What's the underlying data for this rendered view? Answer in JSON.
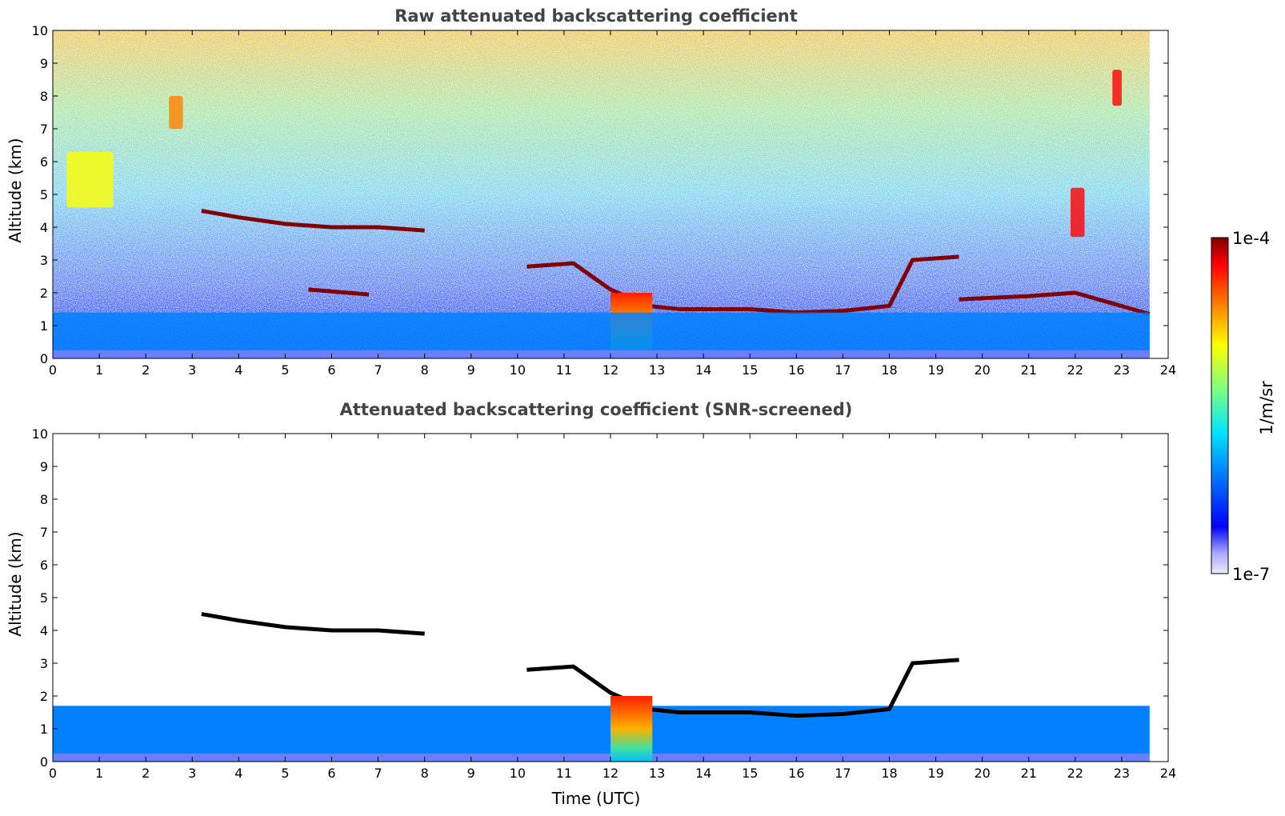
{
  "chart_data": [
    {
      "type": "heatmap",
      "title": "Raw attenuated backscattering coefficient",
      "xlabel": "",
      "ylabel": "Altitude (km)",
      "xlim": [
        0,
        24
      ],
      "ylim": [
        0,
        10
      ],
      "x_ticks": [
        "0",
        "1",
        "2",
        "3",
        "4",
        "5",
        "6",
        "7",
        "8",
        "9",
        "10",
        "11",
        "12",
        "13",
        "14",
        "15",
        "16",
        "17",
        "18",
        "19",
        "20",
        "21",
        "22",
        "23",
        "24"
      ],
      "y_ticks": [
        "0",
        "1",
        "2",
        "3",
        "4",
        "5",
        "6",
        "7",
        "8",
        "9",
        "10"
      ],
      "data_end_time": 23.6,
      "features": [
        {
          "kind": "cloud_layer",
          "points": [
            [
              3.2,
              4.5
            ],
            [
              4.0,
              4.3
            ],
            [
              5.0,
              4.1
            ],
            [
              6.0,
              4.0
            ],
            [
              7.0,
              4.0
            ],
            [
              8.0,
              3.9
            ]
          ],
          "level": "1e-4"
        },
        {
          "kind": "cloud_layer",
          "points": [
            [
              5.5,
              2.1
            ],
            [
              6.8,
              1.95
            ]
          ],
          "level": "1e-4"
        },
        {
          "kind": "cloud_layer",
          "points": [
            [
              10.2,
              2.8
            ],
            [
              11.2,
              2.9
            ],
            [
              12.0,
              2.1
            ],
            [
              12.8,
              1.6
            ],
            [
              13.5,
              1.5
            ],
            [
              15.0,
              1.5
            ],
            [
              16.0,
              1.4
            ],
            [
              17.0,
              1.45
            ],
            [
              18.0,
              1.6
            ],
            [
              18.5,
              3.0
            ],
            [
              19.5,
              3.1
            ]
          ],
          "level": "1e-4"
        },
        {
          "kind": "cloud_layer",
          "points": [
            [
              19.5,
              1.8
            ],
            [
              21.0,
              1.9
            ],
            [
              22.0,
              2.0
            ],
            [
              23.6,
              1.35
            ]
          ],
          "level": "1e-4"
        },
        {
          "kind": "precipitation_shaft",
          "x_range": [
            12.0,
            12.9
          ],
          "top": 2.0,
          "level": "1e-4"
        },
        {
          "kind": "cirrus",
          "x_range": [
            0.3,
            1.3
          ],
          "y_range": [
            4.6,
            6.3
          ],
          "level": "1e-5"
        },
        {
          "kind": "cirrus",
          "x_range": [
            2.5,
            2.8
          ],
          "y_range": [
            7.0,
            8.0
          ],
          "level": "3e-5"
        },
        {
          "kind": "cirrus",
          "x_range": [
            21.9,
            22.2
          ],
          "y_range": [
            3.7,
            5.2
          ],
          "level": "5e-5"
        },
        {
          "kind": "cirrus",
          "x_range": [
            22.8,
            23.0
          ],
          "y_range": [
            7.7,
            8.8
          ],
          "level": "5e-5"
        },
        {
          "kind": "boundary_layer",
          "x_range": [
            0,
            23.6
          ],
          "top": 1.4,
          "level": "1e-6"
        }
      ]
    },
    {
      "type": "heatmap",
      "title": "Attenuated backscattering coefficient (SNR-screened)",
      "xlabel": "Time (UTC)",
      "ylabel": "Altitude (km)",
      "xlim": [
        0,
        24
      ],
      "ylim": [
        0,
        10
      ],
      "x_ticks": [
        "0",
        "1",
        "2",
        "3",
        "4",
        "5",
        "6",
        "7",
        "8",
        "9",
        "10",
        "11",
        "12",
        "13",
        "14",
        "15",
        "16",
        "17",
        "18",
        "19",
        "20",
        "21",
        "22",
        "23",
        "24"
      ],
      "y_ticks": [
        "0",
        "1",
        "2",
        "3",
        "4",
        "5",
        "6",
        "7",
        "8",
        "9",
        "10"
      ],
      "data_end_time": 23.6,
      "features": [
        {
          "kind": "boundary_layer",
          "x_range": [
            0,
            23.6
          ],
          "top": 1.7,
          "level": "1e-6"
        },
        {
          "kind": "cloud_layer",
          "points": [
            [
              3.2,
              4.5
            ],
            [
              4.0,
              4.3
            ],
            [
              5.0,
              4.1
            ],
            [
              6.0,
              4.0
            ],
            [
              7.0,
              4.0
            ],
            [
              8.0,
              3.9
            ]
          ],
          "level": "1e-4"
        },
        {
          "kind": "cloud_layer",
          "points": [
            [
              10.2,
              2.8
            ],
            [
              11.2,
              2.9
            ],
            [
              12.0,
              2.1
            ],
            [
              12.8,
              1.6
            ],
            [
              13.5,
              1.5
            ],
            [
              15.0,
              1.5
            ],
            [
              16.0,
              1.4
            ],
            [
              17.0,
              1.45
            ],
            [
              18.0,
              1.6
            ],
            [
              18.5,
              3.0
            ],
            [
              19.5,
              3.1
            ]
          ],
          "level": "1e-4"
        },
        {
          "kind": "precipitation_shaft",
          "x_range": [
            12.0,
            12.9
          ],
          "top": 2.0,
          "level": "1e-4"
        }
      ]
    }
  ],
  "colorbar": {
    "max_label": "1e-4",
    "min_label": "1e-7",
    "unit_label": "1/m/sr",
    "colormap": "jet",
    "colors": [
      "#e9e9ff",
      "#a9a9ff",
      "#0000ff",
      "#0080ff",
      "#00e5ff",
      "#7fff7f",
      "#ffff00",
      "#ff8000",
      "#ff0000",
      "#800000"
    ]
  }
}
